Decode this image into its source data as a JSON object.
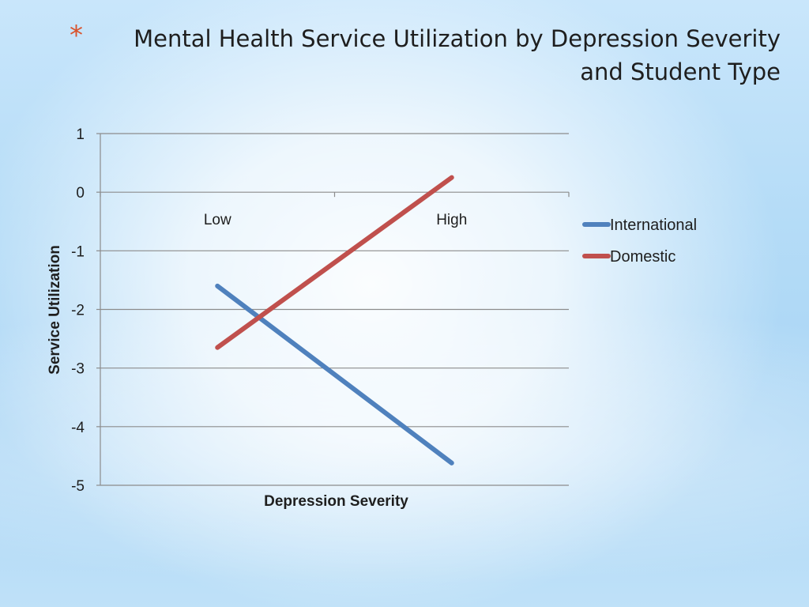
{
  "slide": {
    "bullet": "*",
    "title_line1": "Mental Health Service Utilization by Depression Severity",
    "title_line2": "and Student Type"
  },
  "colors": {
    "bullet": "#d9532c",
    "gridline": "#8c8c8c",
    "axis": "#8c8c8c"
  },
  "chart_data": {
    "type": "line",
    "title": "Mental Health Service Utilization by Depression Severity and Student Type",
    "xlabel": "Depression Severity",
    "ylabel": "Service Utilization",
    "categories": [
      "Low",
      "High"
    ],
    "ylim": [
      -5,
      1
    ],
    "yticks": [
      1,
      0,
      -1,
      -2,
      -3,
      -4,
      -5
    ],
    "grid": true,
    "legend_position": "right",
    "series": [
      {
        "name": "International",
        "color": "#4f81bd",
        "values": [
          -1.6,
          -4.62
        ]
      },
      {
        "name": "Domestic",
        "color": "#c0504d",
        "values": [
          -2.65,
          0.25
        ]
      }
    ]
  }
}
